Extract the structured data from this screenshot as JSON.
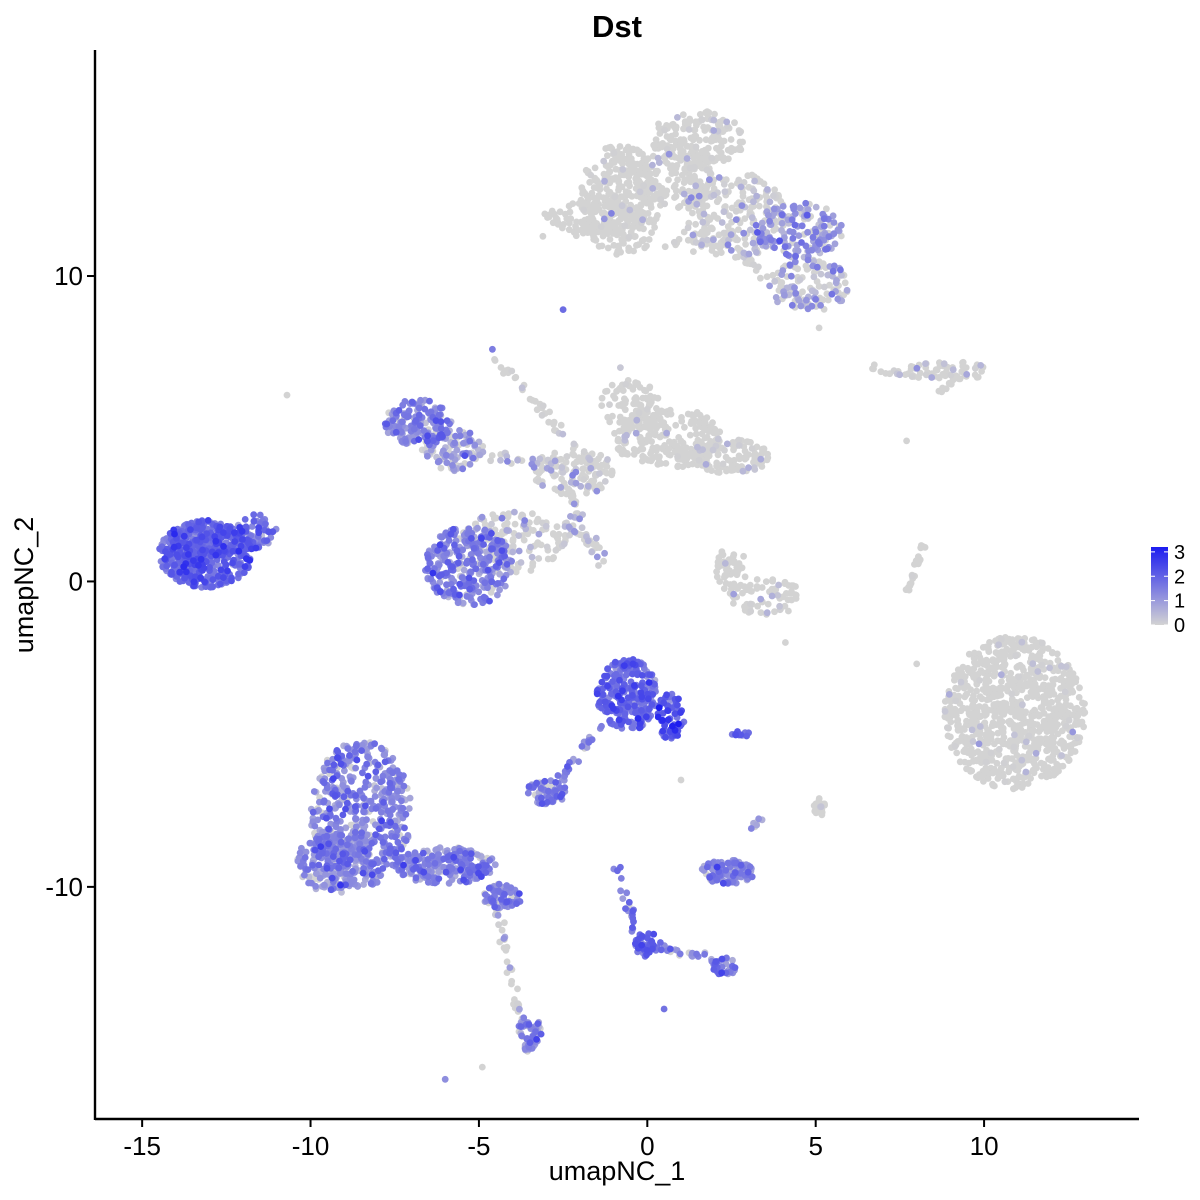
{
  "chart_data": {
    "type": "scatter",
    "title": "Dst",
    "xlabel": "umapNC_1",
    "ylabel": "umapNC_2",
    "xlim": [
      -16.4,
      14.6
    ],
    "ylim": [
      -17.6,
      17.4
    ],
    "x_ticks": [
      -15,
      -10,
      -5,
      0,
      5,
      10
    ],
    "x_tick_labels": [
      "-15",
      "-10",
      "-5",
      "0",
      "5",
      "10"
    ],
    "y_ticks": [
      10,
      0,
      -10
    ],
    "y_tick_labels": [
      "10",
      "0",
      "-10"
    ],
    "grid": false,
    "color_scale": {
      "low": "#d3d3d3",
      "high": "#1c1cf0",
      "min": 0,
      "max": 3.2,
      "ticks": [
        3,
        2,
        1,
        0
      ],
      "tick_labels": [
        "3",
        "2",
        "1",
        "0"
      ],
      "legend_position": "right"
    },
    "clusters": [
      {
        "cx": 10.9,
        "cy": -4.3,
        "rx": 2.1,
        "ry": 2.5,
        "n": 900,
        "expr_mean": 0.05,
        "expr_frac": 0.06
      },
      {
        "cx": -0.8,
        "cy": 12.5,
        "rx": 1.2,
        "ry": 1.8,
        "n": 260,
        "expr_mean": 0.05,
        "expr_frac": 0.05
      },
      {
        "cx": 2.6,
        "cy": 12.0,
        "rx": 1.5,
        "ry": 1.4,
        "n": 200,
        "expr_mean": 0.4,
        "expr_frac": 0.3
      },
      {
        "cx": 4.5,
        "cy": 11.5,
        "rx": 1.3,
        "ry": 0.9,
        "n": 160,
        "expr_mean": 1.1,
        "expr_frac": 0.8
      },
      {
        "cx": 1.5,
        "cy": 14.5,
        "rx": 1.4,
        "ry": 0.9,
        "n": 170,
        "expr_mean": 0.05,
        "expr_frac": 0.06
      },
      {
        "cx": 0.8,
        "cy": 13.2,
        "rx": 1.3,
        "ry": 1.0,
        "n": 140,
        "expr_mean": 0.05,
        "expr_frac": 0.06
      },
      {
        "cx": -1.5,
        "cy": 11.9,
        "rx": 1.6,
        "ry": 0.55,
        "n": 130,
        "expr_mean": 0.05,
        "expr_frac": 0.05
      },
      {
        "cx": 4.8,
        "cy": 9.7,
        "rx": 1.2,
        "ry": 0.9,
        "n": 110,
        "expr_mean": 0.8,
        "expr_frac": 0.5
      },
      {
        "cx": 8.9,
        "cy": 6.9,
        "rx": 1.3,
        "ry": 0.3,
        "n": 55,
        "expr_mean": 0.3,
        "expr_frac": 0.2
      },
      {
        "cx": 0.6,
        "cy": 4.7,
        "rx": 1.6,
        "ry": 1.0,
        "n": 230,
        "expr_mean": 0.05,
        "expr_frac": 0.05
      },
      {
        "cx": -0.5,
        "cy": 5.8,
        "rx": 0.9,
        "ry": 0.8,
        "n": 80,
        "expr_mean": 0.05,
        "expr_frac": 0.05
      },
      {
        "cx": 2.5,
        "cy": 4.1,
        "rx": 1.2,
        "ry": 0.6,
        "n": 110,
        "expr_mean": 0.2,
        "expr_frac": 0.15
      },
      {
        "cx": -6.8,
        "cy": 5.2,
        "rx": 1.0,
        "ry": 0.8,
        "n": 160,
        "expr_mean": 1.3,
        "expr_frac": 0.9
      },
      {
        "cx": -5.8,
        "cy": 4.3,
        "rx": 0.9,
        "ry": 0.7,
        "n": 90,
        "expr_mean": 1.0,
        "expr_frac": 0.7
      },
      {
        "cx": -4.0,
        "cy": 1.3,
        "rx": 1.6,
        "ry": 1.0,
        "n": 140,
        "expr_mean": 0.4,
        "expr_frac": 0.3
      },
      {
        "cx": -5.3,
        "cy": 0.5,
        "rx": 1.3,
        "ry": 1.3,
        "n": 320,
        "expr_mean": 1.4,
        "expr_frac": 0.95
      },
      {
        "cx": -2.2,
        "cy": 3.6,
        "rx": 1.2,
        "ry": 0.8,
        "n": 110,
        "expr_mean": 0.3,
        "expr_frac": 0.25
      },
      {
        "cx": -13.1,
        "cy": 0.9,
        "rx": 1.4,
        "ry": 1.1,
        "n": 520,
        "expr_mean": 1.8,
        "expr_frac": 1.0
      },
      {
        "cx": -11.6,
        "cy": 1.6,
        "rx": 0.6,
        "ry": 0.6,
        "n": 60,
        "expr_mean": 1.6,
        "expr_frac": 1.0
      },
      {
        "cx": -8.5,
        "cy": -7.6,
        "rx": 1.5,
        "ry": 2.4,
        "n": 520,
        "expr_mean": 1.3,
        "expr_frac": 0.9
      },
      {
        "cx": -9.3,
        "cy": -9.2,
        "rx": 1.1,
        "ry": 1.0,
        "n": 200,
        "expr_mean": 1.3,
        "expr_frac": 0.9
      },
      {
        "cx": -6.0,
        "cy": -9.3,
        "rx": 1.5,
        "ry": 0.6,
        "n": 220,
        "expr_mean": 1.3,
        "expr_frac": 0.85
      },
      {
        "cx": -4.3,
        "cy": -10.3,
        "rx": 0.6,
        "ry": 0.4,
        "n": 60,
        "expr_mean": 1.5,
        "expr_frac": 0.9
      },
      {
        "cx": -0.6,
        "cy": -3.7,
        "rx": 0.9,
        "ry": 1.2,
        "n": 260,
        "expr_mean": 1.8,
        "expr_frac": 1.0
      },
      {
        "cx": 0.7,
        "cy": -4.4,
        "rx": 0.4,
        "ry": 0.8,
        "n": 60,
        "expr_mean": 2.2,
        "expr_frac": 1.0
      },
      {
        "cx": -3.0,
        "cy": -6.9,
        "rx": 0.6,
        "ry": 0.4,
        "n": 70,
        "expr_mean": 1.4,
        "expr_frac": 0.9
      },
      {
        "cx": 2.5,
        "cy": 0.4,
        "rx": 0.5,
        "ry": 0.7,
        "n": 45,
        "expr_mean": 0.05,
        "expr_frac": 0.05
      },
      {
        "cx": 3.5,
        "cy": -0.5,
        "rx": 1.1,
        "ry": 0.6,
        "n": 70,
        "expr_mean": 0.2,
        "expr_frac": 0.15
      },
      {
        "cx": 2.4,
        "cy": -9.5,
        "rx": 0.8,
        "ry": 0.4,
        "n": 110,
        "expr_mean": 1.3,
        "expr_frac": 0.85
      },
      {
        "cx": 0.0,
        "cy": -11.9,
        "rx": 0.4,
        "ry": 0.4,
        "n": 45,
        "expr_mean": 1.8,
        "expr_frac": 1.0
      },
      {
        "cx": 2.3,
        "cy": -12.6,
        "rx": 0.4,
        "ry": 0.3,
        "n": 30,
        "expr_mean": 1.5,
        "expr_frac": 1.0
      },
      {
        "cx": -3.5,
        "cy": -14.8,
        "rx": 0.35,
        "ry": 0.6,
        "n": 60,
        "expr_mean": 1.2,
        "expr_frac": 0.8
      },
      {
        "cx": 5.1,
        "cy": -7.4,
        "rx": 0.2,
        "ry": 0.3,
        "n": 20,
        "expr_mean": 0.4,
        "expr_frac": 0.3
      },
      {
        "cx": 2.8,
        "cy": -5.0,
        "rx": 0.3,
        "ry": 0.1,
        "n": 12,
        "expr_mean": 1.6,
        "expr_frac": 1.0
      },
      {
        "cx": -12.7,
        "cy": 0.1,
        "rx": 0.3,
        "ry": 0.2,
        "n": 14,
        "expr_mean": 1.5,
        "expr_frac": 1.0
      }
    ],
    "paths": [
      {
        "x0": -1.9,
        "y0": 11.3,
        "x1": 2.2,
        "y1": 11.0,
        "n": 40,
        "w": 0.25,
        "expr_mean": 0.05,
        "expr_frac": 0.1
      },
      {
        "x0": 2.6,
        "y0": 10.8,
        "x1": 4.7,
        "y1": 9.1,
        "n": 35,
        "w": 0.25,
        "expr_mean": 0.3,
        "expr_frac": 0.3
      },
      {
        "x0": 1.2,
        "y0": 11.4,
        "x1": 1.6,
        "y1": 13.9,
        "n": 30,
        "w": 0.3,
        "expr_mean": 0.05,
        "expr_frac": 0.1
      },
      {
        "x0": 6.6,
        "y0": 7.0,
        "x1": 8.0,
        "y1": 6.7,
        "n": 15,
        "w": 0.15,
        "expr_mean": 0.4,
        "expr_frac": 0.3
      },
      {
        "x0": 8.6,
        "y0": 6.2,
        "x1": 9.3,
        "y1": 6.8,
        "n": 10,
        "w": 0.1,
        "expr_mean": 0.05,
        "expr_frac": 0.1
      },
      {
        "x0": -4.5,
        "y0": 7.3,
        "x1": -1.4,
        "y1": 3.5,
        "n": 45,
        "w": 0.15,
        "expr_mean": 0.2,
        "expr_frac": 0.25
      },
      {
        "x0": -6.0,
        "y0": 4.5,
        "x1": -2.0,
        "y1": 3.5,
        "n": 35,
        "w": 0.25,
        "expr_mean": 0.8,
        "expr_frac": 0.6
      },
      {
        "x0": -2.5,
        "y0": 3.2,
        "x1": -1.3,
        "y1": 0.5,
        "n": 30,
        "w": 0.2,
        "expr_mean": 0.4,
        "expr_frac": 0.4
      },
      {
        "x0": -2.6,
        "y0": 2.0,
        "x1": -1.2,
        "y1": 0.8,
        "n": 20,
        "w": 0.15,
        "expr_mean": 0.4,
        "expr_frac": 0.4
      },
      {
        "x0": 8.2,
        "y0": 1.2,
        "x1": 7.7,
        "y1": -0.4,
        "n": 25,
        "w": 0.1,
        "expr_mean": 0.05,
        "expr_frac": 0.1
      },
      {
        "x0": -1.5,
        "y0": -4.8,
        "x1": -2.6,
        "y1": -6.6,
        "n": 25,
        "w": 0.15,
        "expr_mean": 1.4,
        "expr_frac": 0.9
      },
      {
        "x0": -4.5,
        "y0": -10.5,
        "x1": -3.8,
        "y1": -14.4,
        "n": 35,
        "w": 0.15,
        "expr_mean": 0.3,
        "expr_frac": 0.4
      },
      {
        "x0": -0.9,
        "y0": -9.3,
        "x1": -0.4,
        "y1": -11.5,
        "n": 20,
        "w": 0.15,
        "expr_mean": 1.4,
        "expr_frac": 0.9
      },
      {
        "x0": 0.2,
        "y0": -11.9,
        "x1": 2.3,
        "y1": -12.5,
        "n": 22,
        "w": 0.15,
        "expr_mean": 1.4,
        "expr_frac": 0.9
      },
      {
        "x0": 3.1,
        "y0": -8.2,
        "x1": 3.4,
        "y1": -7.6,
        "n": 8,
        "w": 0.1,
        "expr_mean": 0.8,
        "expr_frac": 0.8
      }
    ],
    "points": [
      {
        "x": -6.0,
        "y": -16.3,
        "v": 1.2
      },
      {
        "x": -4.9,
        "y": -15.9,
        "v": 0.0
      },
      {
        "x": -10.7,
        "y": 6.1,
        "v": 0.0
      },
      {
        "x": 0.5,
        "y": -14.0,
        "v": 1.7
      },
      {
        "x": -2.5,
        "y": 8.9,
        "v": 1.8
      },
      {
        "x": 4.1,
        "y": -2.0,
        "v": 0.0
      },
      {
        "x": 5.1,
        "y": 8.3,
        "v": 0.0
      },
      {
        "x": 7.7,
        "y": 4.6,
        "v": 0.0
      },
      {
        "x": 8.0,
        "y": -2.7,
        "v": 0.0
      },
      {
        "x": -3.1,
        "y": 11.3,
        "v": 0.0
      },
      {
        "x": -0.8,
        "y": 7.0,
        "v": 0.2
      },
      {
        "x": -4.6,
        "y": 7.6,
        "v": 1.5
      },
      {
        "x": 1.0,
        "y": -6.5,
        "v": 0.0
      }
    ]
  }
}
